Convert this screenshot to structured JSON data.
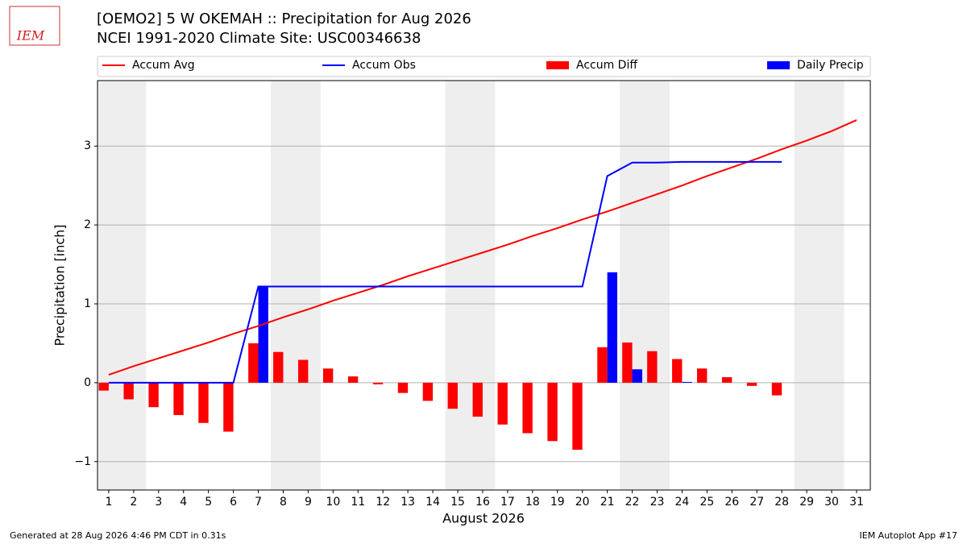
{
  "logo_text": "IEM",
  "footer_left": "Generated at 28 Aug 2026 4:46 PM CDT in 0.31s",
  "footer_right": "IEM Autoplot App #17",
  "chart_data": {
    "type": "combo",
    "title": "[OEMO2] 5 W OKEMAH :: Precipitation for Aug 2026",
    "subtitle": "NCEI 1991-2020 Climate Site: USC00346638",
    "x_label": "August 2026",
    "y_label": "Precipitation [inch]",
    "x": [
      1,
      2,
      3,
      4,
      5,
      6,
      7,
      8,
      9,
      10,
      11,
      12,
      13,
      14,
      15,
      16,
      17,
      18,
      19,
      20,
      21,
      22,
      23,
      24,
      25,
      26,
      27,
      28,
      29,
      30,
      31
    ],
    "xlim": [
      0.55,
      31.55
    ],
    "xticks": [
      1,
      2,
      3,
      4,
      5,
      6,
      7,
      8,
      9,
      10,
      11,
      12,
      13,
      14,
      15,
      16,
      17,
      18,
      19,
      20,
      21,
      22,
      23,
      24,
      25,
      26,
      27,
      28,
      29,
      30,
      31
    ],
    "ylim": [
      -1.36,
      3.83
    ],
    "yticks": [
      {
        "value": -1,
        "label": "−1"
      },
      0,
      1,
      2,
      3
    ],
    "grid": true,
    "shaded_ranges": [
      [
        0.5,
        2.5
      ],
      [
        7.5,
        9.5
      ],
      [
        14.5,
        16.5
      ],
      [
        21.5,
        23.5
      ],
      [
        28.5,
        30.5
      ]
    ],
    "shade_color": "#eeeeee",
    "series": [
      {
        "name": "Accum Avg",
        "type": "line",
        "color": "#ff0000",
        "values": [
          0.1,
          0.21,
          0.31,
          0.41,
          0.51,
          0.62,
          0.72,
          0.83,
          0.93,
          1.04,
          1.14,
          1.24,
          1.35,
          1.45,
          1.55,
          1.65,
          1.75,
          1.86,
          1.96,
          2.07,
          2.17,
          2.28,
          2.39,
          2.5,
          2.62,
          2.73,
          2.84,
          2.96,
          3.07,
          3.19,
          3.33
        ]
      },
      {
        "name": "Accum Obs",
        "type": "line",
        "color": "#0000ff",
        "values": [
          0,
          0,
          0,
          0,
          0,
          0,
          1.22,
          1.22,
          1.22,
          1.22,
          1.22,
          1.22,
          1.22,
          1.22,
          1.22,
          1.22,
          1.22,
          1.22,
          1.22,
          1.22,
          2.62,
          2.79,
          2.79,
          2.8,
          2.8,
          2.8,
          2.8,
          2.8,
          null,
          null,
          null
        ]
      },
      {
        "name": "Accum Diff",
        "type": "bar",
        "side": "left",
        "color": "#ff0000",
        "values": [
          -0.1,
          -0.21,
          -0.31,
          -0.41,
          -0.51,
          -0.62,
          0.5,
          0.39,
          0.29,
          0.18,
          0.08,
          -0.02,
          -0.13,
          -0.23,
          -0.33,
          -0.43,
          -0.53,
          -0.64,
          -0.74,
          -0.85,
          0.45,
          0.51,
          0.4,
          0.3,
          0.18,
          0.07,
          -0.04,
          -0.16,
          null,
          null,
          null
        ]
      },
      {
        "name": "Daily Precip",
        "type": "bar",
        "side": "right",
        "color": "#0000ff",
        "values": [
          0,
          0,
          0,
          0,
          0,
          0,
          1.22,
          0,
          0,
          0,
          0,
          0,
          0,
          0,
          0,
          0,
          0,
          0,
          0,
          0,
          1.4,
          0.17,
          0,
          0.01,
          0,
          0,
          0,
          0,
          null,
          null,
          null
        ]
      }
    ]
  }
}
